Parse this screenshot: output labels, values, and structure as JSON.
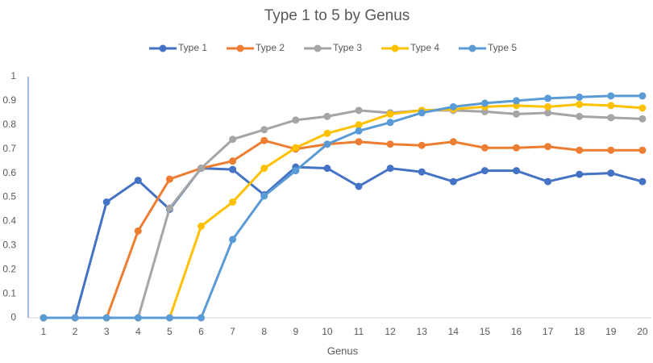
{
  "chart_data": {
    "type": "line",
    "title": "Type 1 to 5 by Genus",
    "x_label": "Genus",
    "categories": [
      "1",
      "2",
      "3",
      "4",
      "5",
      "6",
      "7",
      "8",
      "9",
      "10",
      "11",
      "12",
      "13",
      "14",
      "15",
      "16",
      "17",
      "18",
      "19",
      "20"
    ],
    "series": [
      {
        "name": "Type 1",
        "color": "#4472c4",
        "values": [
          0,
          0,
          0.48,
          0.57,
          0.45,
          0.62,
          0.615,
          0.51,
          0.625,
          0.62,
          0.545,
          0.62,
          0.605,
          0.565,
          0.61,
          0.61,
          0.565,
          0.595,
          0.6,
          0.565
        ]
      },
      {
        "name": "Type 2",
        "color": "#ed7d31",
        "values": [
          0,
          0,
          0,
          0.36,
          0.575,
          0.62,
          0.65,
          0.735,
          0.7,
          0.72,
          0.73,
          0.72,
          0.715,
          0.73,
          0.705,
          0.705,
          0.71,
          0.695,
          0.695,
          0.695
        ]
      },
      {
        "name": "Type 3",
        "color": "#a5a5a5",
        "values": [
          0,
          0,
          0,
          0,
          0.455,
          0.62,
          0.74,
          0.78,
          0.82,
          0.835,
          0.86,
          0.85,
          0.86,
          0.86,
          0.855,
          0.845,
          0.85,
          0.835,
          0.83,
          0.825
        ]
      },
      {
        "name": "Type 4",
        "color": "#ffc000",
        "values": [
          0,
          0,
          0,
          0,
          0,
          0.38,
          0.48,
          0.62,
          0.705,
          0.765,
          0.8,
          0.845,
          0.86,
          0.865,
          0.875,
          0.88,
          0.875,
          0.885,
          0.88,
          0.87
        ]
      },
      {
        "name": "Type 5",
        "color": "#5b9bd5",
        "values": [
          0,
          0,
          0,
          0,
          0,
          0,
          0.325,
          0.505,
          0.61,
          0.72,
          0.775,
          0.81,
          0.85,
          0.875,
          0.89,
          0.9,
          0.91,
          0.915,
          0.92,
          0.92
        ]
      }
    ],
    "ylim": [
      0,
      1
    ],
    "yticks": [
      0,
      0.1,
      0.2,
      0.3,
      0.4,
      0.5,
      0.6,
      0.7,
      0.8,
      0.9,
      1
    ],
    "grid": false,
    "legend": "top"
  }
}
